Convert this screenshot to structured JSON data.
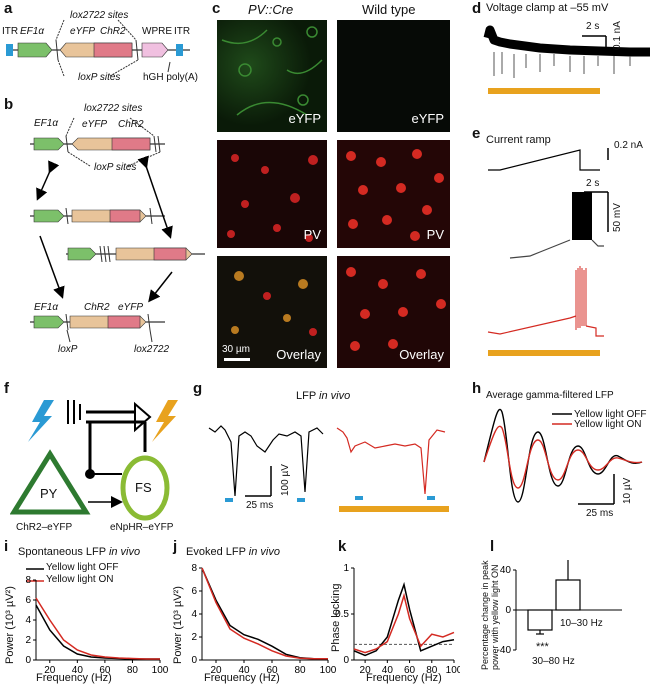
{
  "panels": {
    "a": {
      "label": "a",
      "itr_left": "ITR",
      "ef1a": "EF1α",
      "lox2722": "lox2722 sites",
      "wpre": "WPRE",
      "itr_right": "ITR",
      "eyfp": "eYFP",
      "chr2": "ChR2",
      "loxp": "loxP sites",
      "hgh": "hGH poly(A)"
    },
    "b": {
      "label": "b",
      "ef1a_top": "EF1α",
      "lox2722_top": "lox2722 sites",
      "eyfp": "eYFP",
      "chr2": "ChR2",
      "loxp_top": "loxP sites",
      "ef1a_bottom": "EF1α",
      "chr2_bottom": "ChR2",
      "eyfp_bottom": "eYFP",
      "loxp_bottom": "loxP",
      "lox2722_bottom": "lox2722"
    },
    "c": {
      "label": "c",
      "col1": "PV::Cre",
      "col2": "Wild type",
      "row_labels": [
        "eYFP",
        "eYFP",
        "PV",
        "PV",
        "Overlay",
        "Overlay"
      ],
      "scale": "30 µm"
    },
    "d": {
      "label": "d",
      "title": "Voltage clamp at –55 mV",
      "time_scale": "2 s",
      "current_scale": "0.1 nA"
    },
    "e": {
      "label": "e",
      "title": "Current ramp",
      "current_scale": "0.2 nA",
      "time_scale": "2 s",
      "voltage_scale": "50 mV"
    },
    "f": {
      "label": "f",
      "py": "PY",
      "fs": "FS",
      "chr2": "ChR2–eYFP",
      "enphr": "eNpHR–eYFP"
    },
    "g": {
      "label": "g",
      "title": "LFP",
      "title_ital": "in vivo",
      "v_scale": "100 µV",
      "t_scale": "25 ms"
    },
    "h": {
      "label": "h",
      "title": "Average gamma-filtered LFP",
      "legend_off": "Yellow light OFF",
      "legend_on": "Yellow light ON",
      "v_scale": "10 µV",
      "t_scale": "25 ms"
    },
    "i": {
      "label": "i",
      "title": "Spontaneous LFP",
      "title_ital": "in vivo",
      "legend_off": "Yellow light OFF",
      "legend_on": "Yellow light ON",
      "ylabel": "Power (10³ µV²)",
      "xlabel": "Frequency (Hz)"
    },
    "j": {
      "label": "j",
      "title": "Evoked LFP",
      "title_ital": "in vivo",
      "ylabel": "Power (10³ µV²)",
      "xlabel": "Frequency (Hz)"
    },
    "k": {
      "label": "k",
      "ylabel": "Phase locking",
      "xlabel": "Frequency (Hz)"
    },
    "l": {
      "label": "l",
      "ylabel": "Percentage change in peak power with yellow light ON",
      "bar1_label": "30–80 Hz",
      "bar2_label": "10–30 Hz",
      "sig": "***"
    }
  },
  "colors": {
    "green": "#4a9a3c",
    "pink": "#e07a88",
    "tan": "#e8c49a",
    "orange": "#e8a21e",
    "red": "#d42a22",
    "blue": "#2a9ad4",
    "lightblue": "#bfe0f0",
    "lightpink": "#f0c0e0"
  },
  "chart_data": [
    {
      "id": "i",
      "type": "line",
      "x": [
        10,
        20,
        30,
        40,
        50,
        60,
        70,
        80,
        90,
        100
      ],
      "xlim": [
        10,
        100
      ],
      "ylim": [
        0,
        8
      ],
      "yticks": [
        0,
        2,
        4,
        6,
        8
      ],
      "xticks": [
        20,
        40,
        60,
        80,
        100
      ],
      "series": [
        {
          "name": "Yellow light OFF",
          "values": [
            5.5,
            3.0,
            1.4,
            0.6,
            0.3,
            0.2,
            0.15,
            0.1,
            0.1,
            0.1
          ]
        },
        {
          "name": "Yellow light ON",
          "values": [
            6.2,
            4.0,
            2.0,
            1.0,
            0.5,
            0.3,
            0.2,
            0.15,
            0.1,
            0.1
          ]
        }
      ]
    },
    {
      "id": "j",
      "type": "line",
      "x": [
        10,
        20,
        30,
        40,
        50,
        60,
        70,
        80,
        90,
        100
      ],
      "xlim": [
        10,
        100
      ],
      "ylim": [
        0,
        8
      ],
      "yticks": [
        0,
        2,
        4,
        6,
        8
      ],
      "xticks": [
        20,
        40,
        60,
        80,
        100
      ],
      "series": [
        {
          "name": "Yellow light OFF",
          "values": [
            8.0,
            5.2,
            3.0,
            2.2,
            1.8,
            1.2,
            0.5,
            0.2,
            0.1,
            0.1
          ]
        },
        {
          "name": "Yellow light ON",
          "values": [
            8.0,
            5.0,
            2.7,
            1.9,
            1.4,
            0.8,
            0.35,
            0.15,
            0.1,
            0.1
          ]
        }
      ]
    },
    {
      "id": "k",
      "type": "line",
      "x": [
        10,
        20,
        30,
        40,
        50,
        55,
        60,
        70,
        80,
        90,
        100
      ],
      "xlim": [
        10,
        100
      ],
      "ylim": [
        0,
        1.0
      ],
      "yticks": [
        0,
        0.5,
        1.0
      ],
      "xticks": [
        20,
        40,
        60,
        80,
        100
      ],
      "reference_line": 0.17,
      "series": [
        {
          "name": "Yellow light OFF",
          "values": [
            0.1,
            0.05,
            0.1,
            0.25,
            0.65,
            0.82,
            0.55,
            0.1,
            0.15,
            0.2,
            0.22
          ]
        },
        {
          "name": "Yellow light ON",
          "values": [
            0.12,
            0.08,
            0.12,
            0.2,
            0.5,
            0.7,
            0.45,
            0.15,
            0.28,
            0.25,
            0.3
          ]
        }
      ]
    },
    {
      "id": "l",
      "type": "bar",
      "categories": [
        "30–80 Hz",
        "10–30 Hz"
      ],
      "values": [
        -20,
        30
      ],
      "errors": [
        4,
        35
      ],
      "ylim": [
        -40,
        40
      ],
      "yticks": [
        -40,
        0,
        40
      ]
    }
  ]
}
